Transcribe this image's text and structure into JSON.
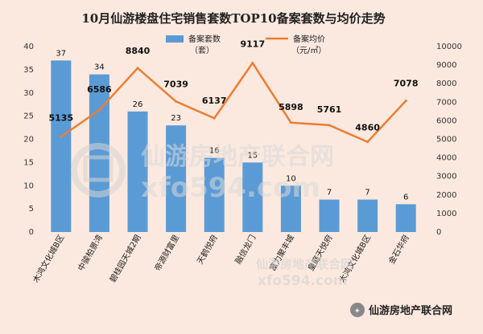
{
  "chart_data": {
    "type": "bar",
    "title": "10月仙游楼盘住宅销售套数TOP10备案套数与均价走势",
    "categories": [
      "木鸿文化城B区",
      "中骏柏景湾",
      "碧桂园天城2期",
      "帝源财富里",
      "天鹤悦府",
      "融信龙门",
      "富力聚丰城",
      "皇庭天悦府",
      "木鸿文化城B区",
      "金石华府"
    ],
    "series": [
      {
        "name": "备案套数\n（套）",
        "type": "bar",
        "axis": "left",
        "color": "#5b9bd5",
        "values": [
          37,
          34,
          26,
          23,
          16,
          15,
          10,
          7,
          7,
          6
        ]
      },
      {
        "name": "备案均价\n（元/㎡）",
        "type": "line",
        "axis": "right",
        "color": "#ed7d31",
        "values": [
          5135,
          6586,
          8840,
          7039,
          6137,
          9117,
          5898,
          5761,
          4860,
          7078
        ]
      }
    ],
    "y_left": {
      "range": [
        0,
        40
      ],
      "ticks": [
        0,
        5,
        10,
        15,
        20,
        25,
        30,
        35,
        40
      ]
    },
    "y_right": {
      "range": [
        0,
        10000
      ],
      "ticks": [
        0,
        1000,
        2000,
        3000,
        4000,
        5000,
        6000,
        7000,
        8000,
        9000,
        10000
      ]
    },
    "legend": {
      "position": "top-right",
      "bar_label_1": "备案套数",
      "bar_label_2": "（套）",
      "line_label_1": "备案均价",
      "line_label_2": "（元/㎡）"
    },
    "grid": false
  },
  "watermark": {
    "main": "仙游房地产联合网",
    "domain": "xfo594.com",
    "small_main": "仙游房地产联合网",
    "small_domain": "xfo594.com",
    "footer": "仙游房地产联合网"
  }
}
